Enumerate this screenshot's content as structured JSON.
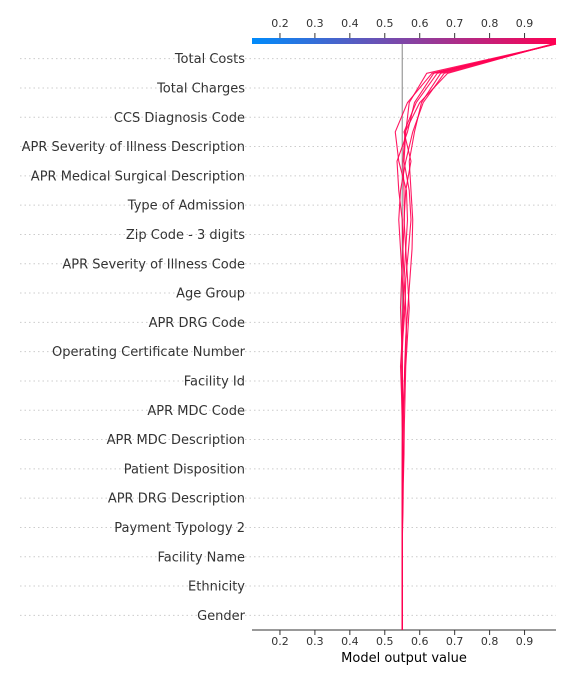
{
  "chart_data": {
    "type": "line",
    "subtype": "shap-decision-plot",
    "xlabel": "Model output value",
    "xlim": [
      0.12,
      0.99
    ],
    "x_ticks": [
      0.2,
      0.3,
      0.4,
      0.5,
      0.6,
      0.7,
      0.8,
      0.9
    ],
    "base_value": 0.55,
    "colorbar": {
      "from": "#008bfb",
      "to": "#ff0052",
      "position": "top"
    },
    "line_color": "#ff0052",
    "grid": "dotted-horizontal",
    "features": [
      "Total Costs",
      "Total Charges",
      "CCS Diagnosis Code",
      "APR Severity of Illness Description",
      "APR Medical Surgical Description",
      "Type of Admission",
      "Zip Code - 3 digits",
      "APR Severity of Illness Code",
      "Age Group",
      "APR DRG Code",
      "Operating Certificate Number",
      "Facility Id",
      "APR MDC Code",
      "APR MDC Description",
      "Patient Disposition",
      "APR DRG Description",
      "Payment Typology 2",
      "Facility Name",
      "Ethnicity",
      "Gender"
    ],
    "series": [
      {
        "values": [
          0.55,
          0.55,
          0.55,
          0.55,
          0.552,
          0.553,
          0.555,
          0.556,
          0.558,
          0.56,
          0.565,
          0.57,
          0.565,
          0.56,
          0.555,
          0.56,
          0.575,
          0.555,
          0.59,
          0.65,
          0.99
        ]
      },
      {
        "values": [
          0.55,
          0.55,
          0.55,
          0.55,
          0.551,
          0.552,
          0.554,
          0.55,
          0.548,
          0.545,
          0.55,
          0.555,
          0.55,
          0.545,
          0.54,
          0.545,
          0.56,
          0.58,
          0.61,
          0.67,
          0.985
        ]
      },
      {
        "values": [
          0.55,
          0.55,
          0.55,
          0.55,
          0.55,
          0.551,
          0.552,
          0.553,
          0.555,
          0.557,
          0.56,
          0.566,
          0.572,
          0.578,
          0.58,
          0.575,
          0.57,
          0.585,
          0.605,
          0.66,
          0.98
        ]
      },
      {
        "values": [
          0.55,
          0.55,
          0.55,
          0.55,
          0.55,
          0.55,
          0.551,
          0.552,
          0.551,
          0.55,
          0.548,
          0.545,
          0.548,
          0.552,
          0.556,
          0.555,
          0.552,
          0.558,
          0.6,
          0.68,
          0.98
        ]
      },
      {
        "values": [
          0.55,
          0.55,
          0.55,
          0.55,
          0.55,
          0.55,
          0.55,
          0.55,
          0.55,
          0.55,
          0.549,
          0.552,
          0.555,
          0.56,
          0.565,
          0.562,
          0.54,
          0.53,
          0.565,
          0.635,
          0.99
        ]
      },
      {
        "values": [
          0.55,
          0.55,
          0.55,
          0.55,
          0.55,
          0.55,
          0.551,
          0.553,
          0.55,
          0.548,
          0.552,
          0.558,
          0.56,
          0.568,
          0.575,
          0.57,
          0.555,
          0.56,
          0.57,
          0.62,
          0.99
        ]
      },
      {
        "values": [
          0.55,
          0.55,
          0.55,
          0.55,
          0.55,
          0.55,
          0.55,
          0.551,
          0.554,
          0.558,
          0.562,
          0.56,
          0.555,
          0.552,
          0.55,
          0.54,
          0.535,
          0.565,
          0.585,
          0.64,
          0.99
        ]
      }
    ]
  }
}
